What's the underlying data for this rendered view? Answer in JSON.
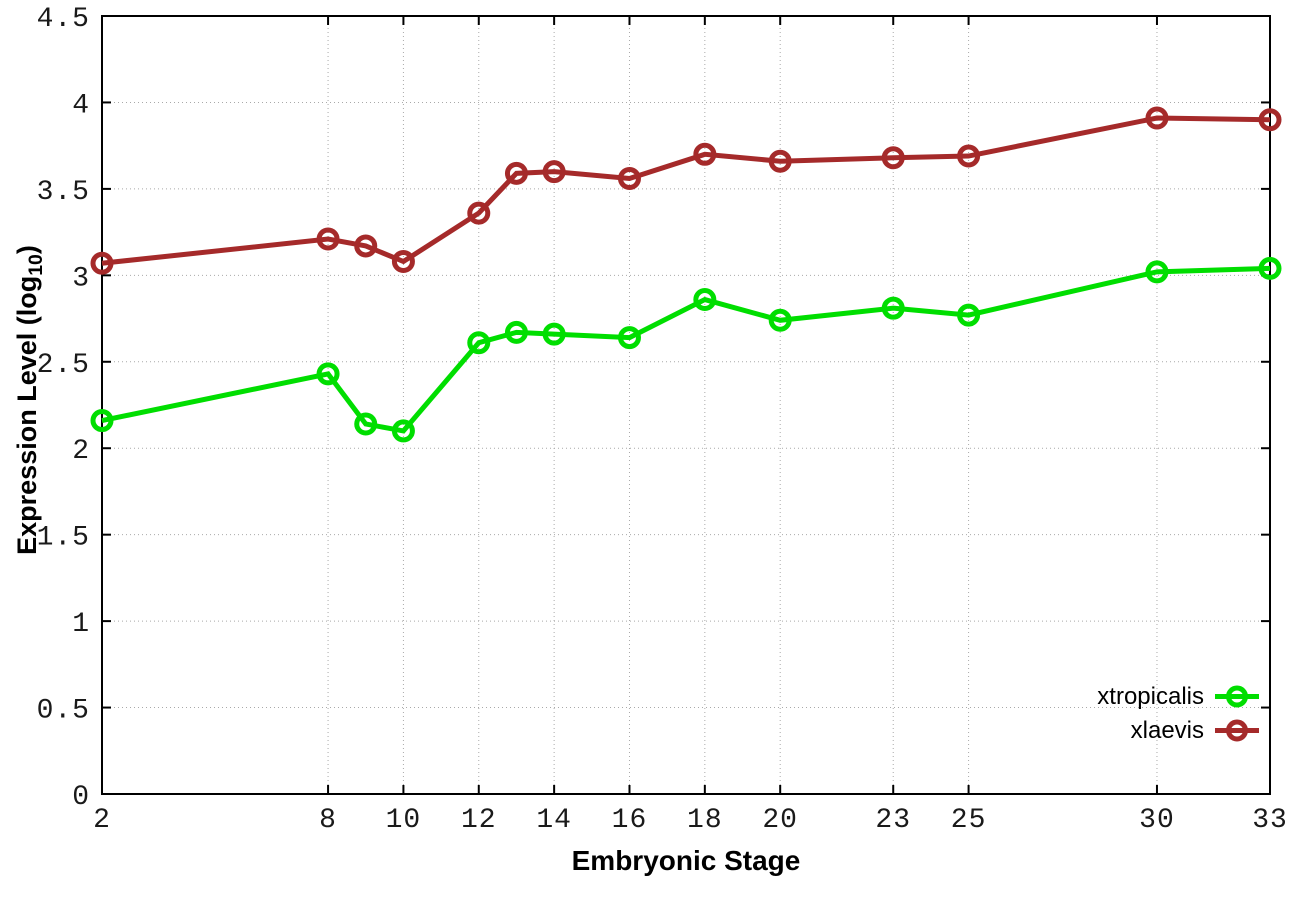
{
  "chart_data": {
    "type": "line",
    "title": "",
    "xlabel": "Embryonic Stage",
    "ylabel": {
      "prefix": "Expression Level (log",
      "sub": "10",
      "suffix": ")"
    },
    "xlim": [
      2,
      33
    ],
    "ylim": [
      0,
      4.5
    ],
    "grid": true,
    "legend_position": "bottom-right",
    "x_ticks": [
      2,
      8,
      10,
      12,
      14,
      16,
      18,
      20,
      23,
      25,
      30,
      33
    ],
    "y_ticks": [
      "0",
      "0.5",
      "1",
      "1.5",
      "2",
      "2.5",
      "3",
      "3.5",
      "4",
      "4.5"
    ],
    "x": [
      2,
      8,
      9,
      10,
      12,
      13,
      14,
      16,
      18,
      20,
      23,
      25,
      30,
      33
    ],
    "series": [
      {
        "name": "xtropicalis",
        "color": "#00DE00",
        "values": [
          2.16,
          2.43,
          2.14,
          2.1,
          2.61,
          2.67,
          2.66,
          2.64,
          2.86,
          2.74,
          2.81,
          2.77,
          3.02,
          3.04
        ]
      },
      {
        "name": "xlaevis",
        "color": "#A52A2A",
        "values": [
          3.07,
          3.21,
          3.17,
          3.08,
          3.36,
          3.59,
          3.6,
          3.56,
          3.7,
          3.66,
          3.68,
          3.69,
          3.91,
          3.9
        ]
      }
    ]
  }
}
